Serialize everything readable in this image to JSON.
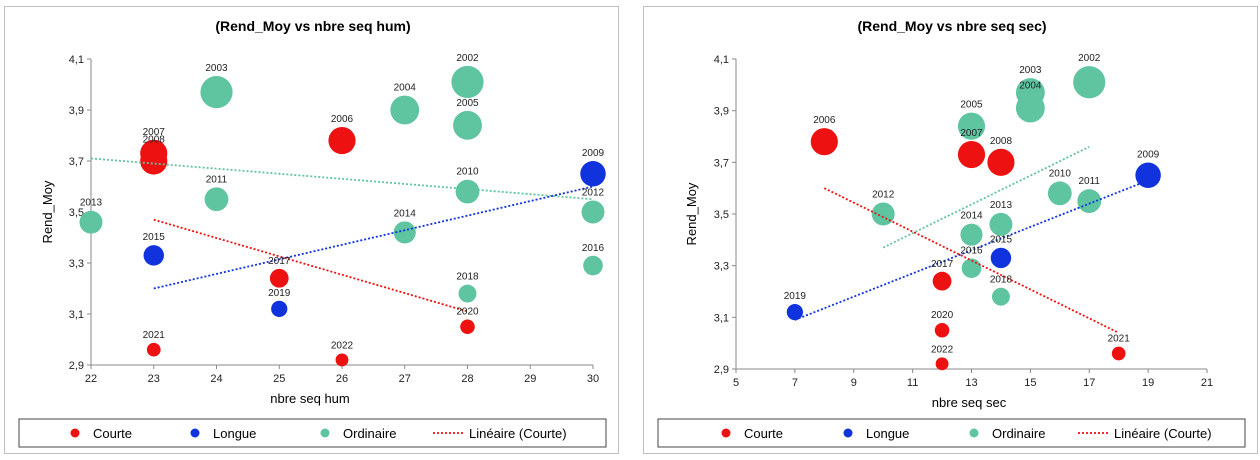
{
  "colors": {
    "Courte": "#ee1111",
    "Longue": "#1133dd",
    "Ordinaire": "#5fc4a0"
  },
  "chart_data": [
    {
      "type": "scatter",
      "title": "(Rend_Moy vs nbre seq hum)",
      "xlabel": "nbre seq hum",
      "ylabel": "Rend_Moy",
      "xlim": [
        22,
        30
      ],
      "ylim": [
        2.9,
        4.1
      ],
      "x_ticks": [
        22,
        23,
        24,
        25,
        26,
        27,
        28,
        29,
        30
      ],
      "x_tick_labels": [
        "22",
        "23",
        "24",
        "25",
        "26",
        "27",
        "28",
        "29",
        "30"
      ],
      "y_ticks": [
        2.9,
        3.1,
        3.3,
        3.5,
        3.7,
        3.9,
        4.1
      ],
      "y_tick_labels": [
        "2,9",
        "3,1",
        "3,3",
        "3,5",
        "3,7",
        "3,9",
        "4,1"
      ],
      "grid": false,
      "legend": [
        "Courte",
        "Longue",
        "Ordinaire",
        "Linéaire (Courte)"
      ],
      "legend_position": "bottom",
      "points": [
        {
          "label": "2002",
          "x": 28,
          "y": 4.01,
          "series": "Ordinaire",
          "size": 3
        },
        {
          "label": "2003",
          "x": 24,
          "y": 3.97,
          "series": "Ordinaire",
          "size": 3
        },
        {
          "label": "2004",
          "x": 27,
          "y": 3.9,
          "series": "Ordinaire",
          "size": 2.6
        },
        {
          "label": "2005",
          "x": 28,
          "y": 3.84,
          "series": "Ordinaire",
          "size": 2.6
        },
        {
          "label": "2006",
          "x": 26,
          "y": 3.78,
          "series": "Courte",
          "size": 2.4
        },
        {
          "label": "2007",
          "x": 23,
          "y": 3.73,
          "series": "Courte",
          "size": 2.4
        },
        {
          "label": "2008",
          "x": 23,
          "y": 3.7,
          "series": "Courte",
          "size": 2.4
        },
        {
          "label": "2009",
          "x": 30,
          "y": 3.65,
          "series": "Longue",
          "size": 2.2
        },
        {
          "label": "2010",
          "x": 28,
          "y": 3.58,
          "series": "Ordinaire",
          "size": 2
        },
        {
          "label": "2011",
          "x": 24,
          "y": 3.55,
          "series": "Ordinaire",
          "size": 2
        },
        {
          "label": "2012",
          "x": 30,
          "y": 3.5,
          "series": "Ordinaire",
          "size": 1.9
        },
        {
          "label": "2013",
          "x": 22,
          "y": 3.46,
          "series": "Ordinaire",
          "size": 1.9
        },
        {
          "label": "2014",
          "x": 27,
          "y": 3.42,
          "series": "Ordinaire",
          "size": 1.8
        },
        {
          "label": "2015",
          "x": 23,
          "y": 3.33,
          "series": "Longue",
          "size": 1.6
        },
        {
          "label": "2016",
          "x": 30,
          "y": 3.29,
          "series": "Ordinaire",
          "size": 1.5
        },
        {
          "label": "2017",
          "x": 25,
          "y": 3.24,
          "series": "Courte",
          "size": 1.4
        },
        {
          "label": "2018",
          "x": 28,
          "y": 3.18,
          "series": "Ordinaire",
          "size": 1.3
        },
        {
          "label": "2019",
          "x": 25,
          "y": 3.12,
          "series": "Longue",
          "size": 1.1
        },
        {
          "label": "2020",
          "x": 28,
          "y": 3.05,
          "series": "Courte",
          "size": 0.9
        },
        {
          "label": "2021",
          "x": 23,
          "y": 2.96,
          "series": "Courte",
          "size": 0.8
        },
        {
          "label": "2022",
          "x": 26,
          "y": 2.92,
          "series": "Courte",
          "size": 0.7
        }
      ],
      "trendlines": [
        {
          "series": "Ordinaire",
          "from": [
            22,
            3.71
          ],
          "to": [
            30,
            3.55
          ]
        },
        {
          "series": "Longue",
          "from": [
            23,
            3.2
          ],
          "to": [
            30,
            3.6
          ]
        },
        {
          "series": "Courte",
          "from": [
            23,
            3.47
          ],
          "to": [
            28,
            3.11
          ]
        }
      ]
    },
    {
      "type": "scatter",
      "title": "(Rend_Moy vs nbre seq sec)",
      "xlabel": "nbre seq sec",
      "ylabel": "Rend_Moy",
      "xlim": [
        5,
        21
      ],
      "ylim": [
        2.9,
        4.1
      ],
      "x_ticks": [
        5,
        7,
        9,
        11,
        13,
        15,
        17,
        19,
        21
      ],
      "x_tick_labels": [
        "5",
        "7",
        "9",
        "11",
        "13",
        "15",
        "17",
        "19",
        "21"
      ],
      "y_ticks": [
        2.9,
        3.1,
        3.3,
        3.5,
        3.7,
        3.9,
        4.1
      ],
      "y_tick_labels": [
        "2,9",
        "3,1",
        "3,3",
        "3,5",
        "3,7",
        "3,9",
        "4,1"
      ],
      "grid": false,
      "legend": [
        "Courte",
        "Longue",
        "Ordinaire",
        "Linéaire (Courte)"
      ],
      "legend_position": "bottom",
      "points": [
        {
          "label": "2002",
          "x": 17,
          "y": 4.01,
          "series": "Ordinaire",
          "size": 3
        },
        {
          "label": "2003",
          "x": 15,
          "y": 3.97,
          "series": "Ordinaire",
          "size": 2.6
        },
        {
          "label": "2004",
          "x": 15,
          "y": 3.91,
          "series": "Ordinaire",
          "size": 2.6
        },
        {
          "label": "2005",
          "x": 13,
          "y": 3.84,
          "series": "Ordinaire",
          "size": 2.4
        },
        {
          "label": "2006",
          "x": 8,
          "y": 3.78,
          "series": "Courte",
          "size": 2.4
        },
        {
          "label": "2007",
          "x": 13,
          "y": 3.73,
          "series": "Courte",
          "size": 2.4
        },
        {
          "label": "2008",
          "x": 14,
          "y": 3.7,
          "series": "Courte",
          "size": 2.4
        },
        {
          "label": "2009",
          "x": 19,
          "y": 3.65,
          "series": "Longue",
          "size": 2.2
        },
        {
          "label": "2010",
          "x": 16,
          "y": 3.58,
          "series": "Ordinaire",
          "size": 2
        },
        {
          "label": "2011",
          "x": 17,
          "y": 3.55,
          "series": "Ordinaire",
          "size": 2
        },
        {
          "label": "2012",
          "x": 10,
          "y": 3.5,
          "series": "Ordinaire",
          "size": 1.9
        },
        {
          "label": "2013",
          "x": 14,
          "y": 3.46,
          "series": "Ordinaire",
          "size": 1.9
        },
        {
          "label": "2014",
          "x": 13,
          "y": 3.42,
          "series": "Ordinaire",
          "size": 1.8
        },
        {
          "label": "2015",
          "x": 14,
          "y": 3.33,
          "series": "Longue",
          "size": 1.6
        },
        {
          "label": "2016",
          "x": 13,
          "y": 3.29,
          "series": "Ordinaire",
          "size": 1.5
        },
        {
          "label": "2017",
          "x": 12,
          "y": 3.24,
          "series": "Courte",
          "size": 1.4
        },
        {
          "label": "2018",
          "x": 14,
          "y": 3.18,
          "series": "Ordinaire",
          "size": 1.3
        },
        {
          "label": "2019",
          "x": 7,
          "y": 3.12,
          "series": "Longue",
          "size": 1.1
        },
        {
          "label": "2020",
          "x": 12,
          "y": 3.05,
          "series": "Courte",
          "size": 0.9
        },
        {
          "label": "2021",
          "x": 18,
          "y": 2.96,
          "series": "Courte",
          "size": 0.8
        },
        {
          "label": "2022",
          "x": 12,
          "y": 2.92,
          "series": "Courte",
          "size": 0.7
        }
      ],
      "trendlines": [
        {
          "series": "Ordinaire",
          "from": [
            10,
            3.37
          ],
          "to": [
            17,
            3.76
          ]
        },
        {
          "series": "Longue",
          "from": [
            7,
            3.09
          ],
          "to": [
            19,
            3.63
          ]
        },
        {
          "series": "Courte",
          "from": [
            8,
            3.6
          ],
          "to": [
            18,
            3.04
          ]
        }
      ]
    }
  ]
}
